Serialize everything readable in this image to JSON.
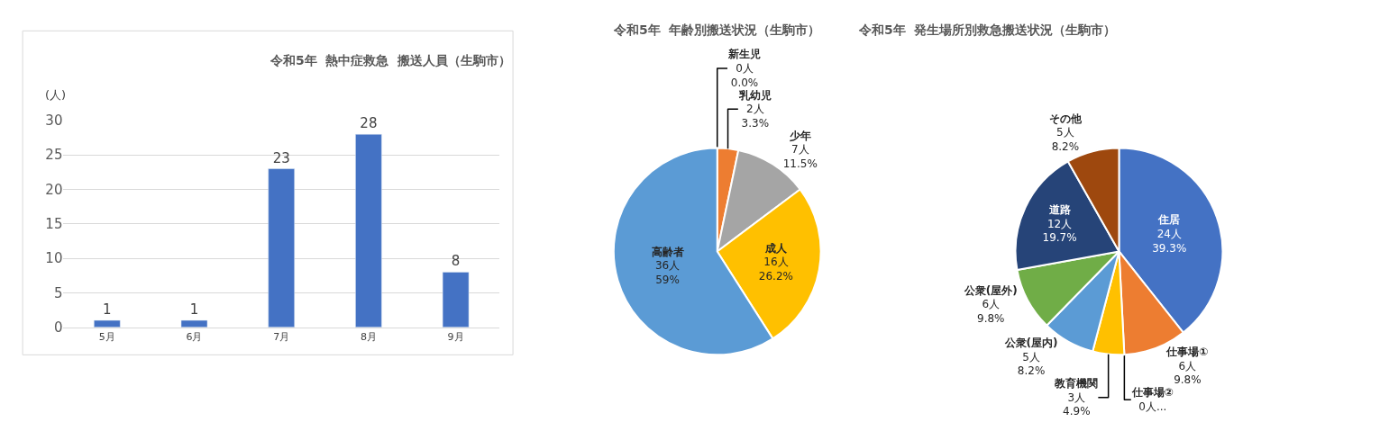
{
  "chart_data": [
    {
      "type": "bar",
      "title": "令和5年  熱中症救急  搬送人員（生駒市）",
      "ylabel": "(人)",
      "categories": [
        "5月",
        "6月",
        "7月",
        "8月",
        "9月"
      ],
      "values": [
        1,
        1,
        23,
        28,
        8
      ],
      "color": "#4472c4",
      "ylim": [
        0,
        30
      ],
      "yticks": [
        0,
        5,
        10,
        15,
        20,
        25,
        30
      ],
      "grid": "y",
      "data_labels": true
    },
    {
      "type": "pie",
      "title": "令和5年  年齢別搬送状況（生駒市）",
      "categories": [
        "新生児",
        "乳幼児",
        "少年",
        "成人",
        "高齢者"
      ],
      "values": [
        0,
        2,
        7,
        16,
        36
      ],
      "colors": [
        "#4472c4",
        "#ed7d31",
        "#a5a5a5",
        "#ffc000",
        "#5b9bd5"
      ],
      "value_labels": [
        "0人\n0.0%",
        "2人\n3.3%",
        "7人\n11.5%",
        "16人\n26.2%",
        "36人\n59%"
      ]
    },
    {
      "type": "pie",
      "title": "令和5年  発生場所別救急搬送状況（生駒市）",
      "categories": [
        "住居",
        "仕事場①",
        "仕事場②",
        "教育機関",
        "公衆(屋内)",
        "公衆(屋外)",
        "道路",
        "その他"
      ],
      "values": [
        24,
        6,
        0,
        3,
        5,
        6,
        12,
        5
      ],
      "colors": [
        "#4472c4",
        "#ed7d31",
        "#a5a5a5",
        "#ffc000",
        "#5b9bd5",
        "#70ad47",
        "#264478",
        "#9e480e"
      ],
      "value_labels": [
        "24人\n39.3%",
        "6人\n9.8%",
        "0人...",
        "3人\n4.9%",
        "5人\n8.2%",
        "6人\n9.8%",
        "12人\n19.7%",
        "5人\n8.2%"
      ]
    }
  ]
}
